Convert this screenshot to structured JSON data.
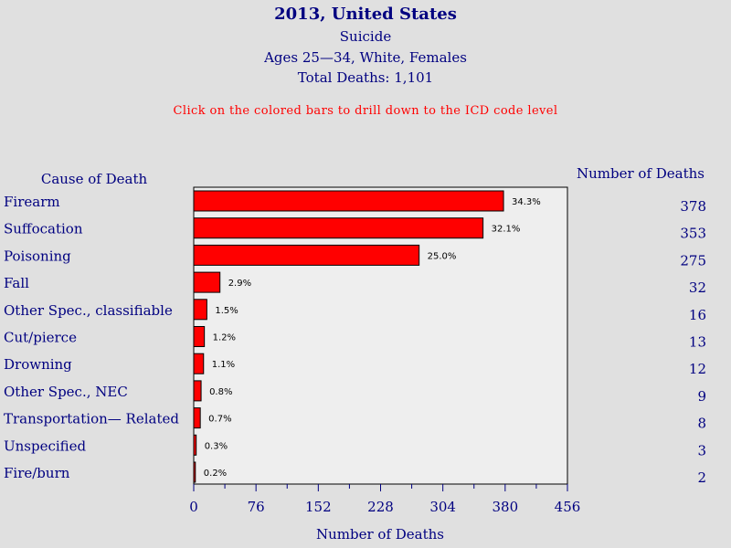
{
  "header": {
    "title": "2013, United States",
    "subtitle": "Suicide",
    "demographics": "Ages 25—34, White, Females",
    "total": "Total Deaths: 1,101",
    "instruction": "Click on the colored bars to drill down to the ICD code level"
  },
  "chart_data": {
    "type": "bar",
    "orientation": "horizontal",
    "categories": [
      "Firearm",
      "Suffocation",
      "Poisoning",
      "Fall",
      "Other Spec., classifiable",
      "Cut/pierce",
      "Drowning",
      "Other Spec., NEC",
      "Transportation— Related",
      "Unspecified",
      "Fire/burn"
    ],
    "values": [
      378,
      353,
      275,
      32,
      16,
      13,
      12,
      9,
      8,
      3,
      2
    ],
    "percent_labels": [
      "34.3%",
      "32.1%",
      "25.0%",
      "2.9%",
      "1.5%",
      "1.2%",
      "1.1%",
      "0.8%",
      "0.7%",
      "0.3%",
      "0.2%"
    ],
    "category_header": "Cause of Death",
    "value_header": "Number of Deaths",
    "xlabel": "Number of Deaths",
    "xlim": [
      0,
      456
    ],
    "xticks": [
      0,
      76,
      152,
      228,
      304,
      380,
      456
    ],
    "bar_color": "#ff0000",
    "plot_background": "#eeeeee"
  }
}
